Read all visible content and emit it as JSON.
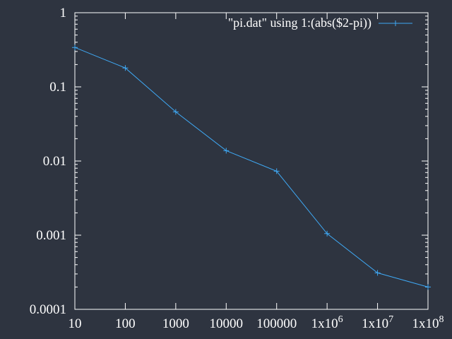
{
  "chart_data": {
    "type": "line",
    "x_scale": "log",
    "y_scale": "log",
    "xlim": [
      10,
      100000000
    ],
    "ylim": [
      0.0001,
      1
    ],
    "grid": false,
    "legend_position": "top-right",
    "x_ticks": [
      {
        "value": 10,
        "label": "10"
      },
      {
        "value": 100,
        "label": "100"
      },
      {
        "value": 1000,
        "label": "1000"
      },
      {
        "value": 10000,
        "label": "10000"
      },
      {
        "value": 100000,
        "label": "100000"
      },
      {
        "value": 1000000,
        "label": "1x10",
        "exp": "6"
      },
      {
        "value": 10000000,
        "label": "1x10",
        "exp": "7"
      },
      {
        "value": 100000000,
        "label": "1x10",
        "exp": "8"
      }
    ],
    "y_ticks": [
      {
        "value": 1,
        "label": "1"
      },
      {
        "value": 0.1,
        "label": "0.1"
      },
      {
        "value": 0.01,
        "label": "0.01"
      },
      {
        "value": 0.001,
        "label": "0.001"
      },
      {
        "value": 0.0001,
        "label": "0.0001"
      }
    ],
    "series": [
      {
        "name": "\"pi.dat\" using 1:(abs($2-pi))",
        "color": "#3fa9f5",
        "x": [
          10,
          100,
          1000,
          10000,
          100000,
          1000000,
          10000000,
          100000000
        ],
        "y": [
          0.34,
          0.18,
          0.046,
          0.0138,
          0.0073,
          0.00105,
          0.00031,
          0.0002
        ]
      }
    ]
  },
  "colors": {
    "background": "#2e3440",
    "axis": "#ffffff",
    "text": "#ffffff"
  }
}
